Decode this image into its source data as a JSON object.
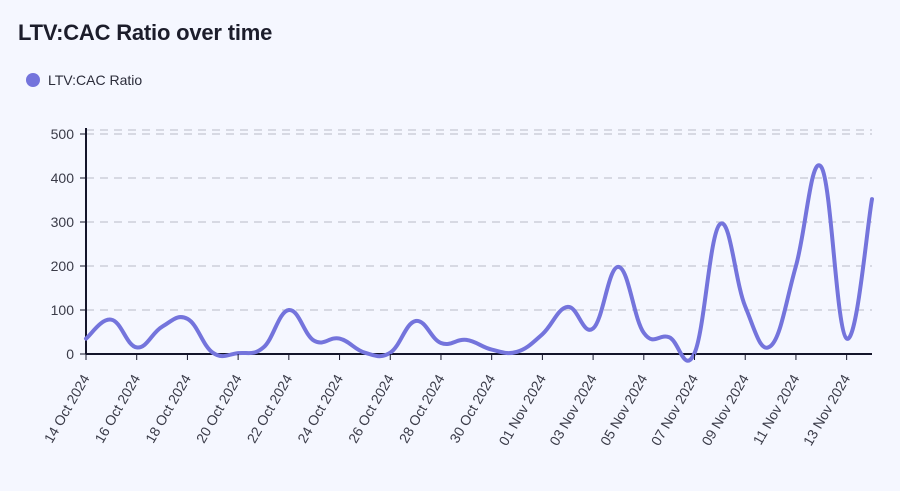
{
  "title": "LTV:CAC Ratio over time",
  "legend": {
    "label": "LTV:CAC Ratio",
    "color": "#7474dc"
  },
  "colors": {
    "line": "#7474dc",
    "grid": "#c5c7d2",
    "axis": "#14152a"
  },
  "chart_data": {
    "type": "line",
    "title": "LTV:CAC Ratio over time",
    "xlabel": "",
    "ylabel": "",
    "ylim": [
      0,
      500
    ],
    "yticks": [
      0,
      100,
      200,
      300,
      400,
      500
    ],
    "grid": "horizontal dashed",
    "legend_position": "top-left",
    "x": [
      "2024-10-14",
      "2024-10-15",
      "2024-10-16",
      "2024-10-17",
      "2024-10-18",
      "2024-10-19",
      "2024-10-20",
      "2024-10-21",
      "2024-10-22",
      "2024-10-23",
      "2024-10-24",
      "2024-10-25",
      "2024-10-26",
      "2024-10-27",
      "2024-10-28",
      "2024-10-29",
      "2024-10-30",
      "2024-10-31",
      "2024-11-01",
      "2024-11-02",
      "2024-11-03",
      "2024-11-04",
      "2024-11-05",
      "2024-11-06",
      "2024-11-07",
      "2024-11-08",
      "2024-11-09",
      "2024-11-10",
      "2024-11-11",
      "2024-11-12",
      "2024-11-13",
      "2024-11-14"
    ],
    "tick_labels": [
      "14 Oct 2024",
      "16 Oct 2024",
      "18 Oct 2024",
      "20 Oct 2024",
      "22 Oct 2024",
      "24 Oct 2024",
      "26 Oct 2024",
      "28 Oct 2024",
      "30 Oct 2024",
      "01 Nov 2024",
      "03 Nov 2024",
      "05 Nov 2024",
      "07 Nov 2024",
      "09 Nov 2024",
      "11 Nov 2024",
      "13 Nov 2024"
    ],
    "series": [
      {
        "name": "LTV:CAC Ratio",
        "values": [
          35,
          78,
          15,
          62,
          80,
          3,
          2,
          15,
          100,
          30,
          35,
          3,
          3,
          75,
          25,
          32,
          10,
          5,
          45,
          107,
          58,
          198,
          48,
          38,
          2,
          295,
          108,
          18,
          200,
          425,
          35,
          352
        ]
      }
    ]
  }
}
